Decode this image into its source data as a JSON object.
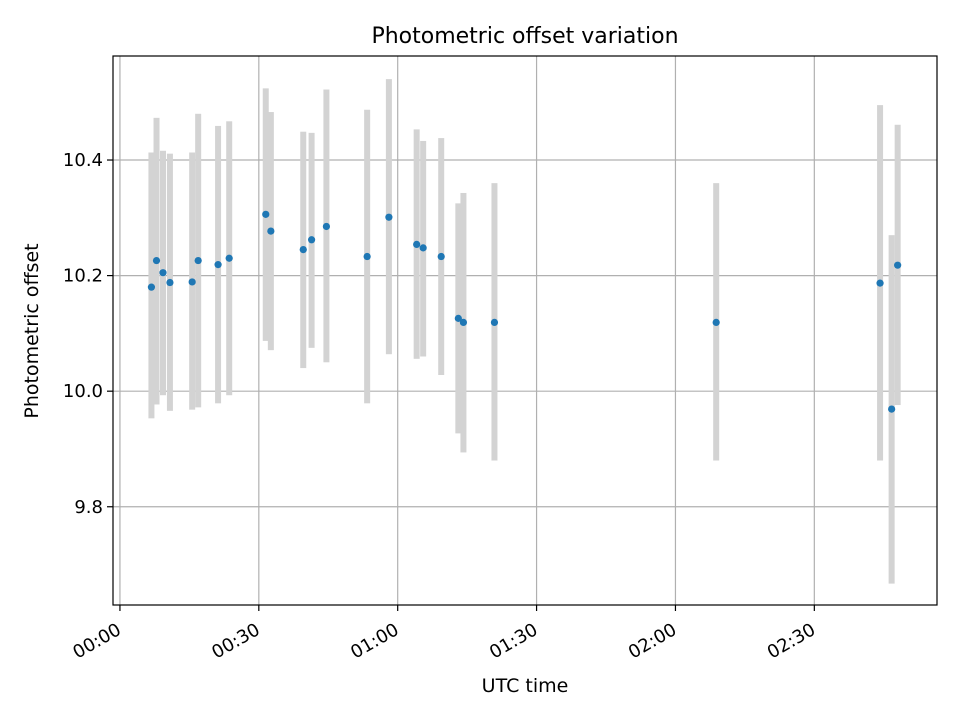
{
  "chart_data": {
    "type": "scatter",
    "title": "Photometric offset variation",
    "xlabel": "UTC time",
    "ylabel": "Photometric offset",
    "x_unit": "minutes",
    "xlim": [
      -1.5,
      176.5
    ],
    "ylim": [
      9.63,
      10.58
    ],
    "x_ticks": [
      {
        "value": 0,
        "label": "00:00"
      },
      {
        "value": 30,
        "label": "00:30"
      },
      {
        "value": 60,
        "label": "01:00"
      },
      {
        "value": 90,
        "label": "01:30"
      },
      {
        "value": 120,
        "label": "02:00"
      },
      {
        "value": 150,
        "label": "02:30"
      }
    ],
    "y_ticks": [
      {
        "value": 9.8,
        "label": "9.8"
      },
      {
        "value": 10.0,
        "label": "10.0"
      },
      {
        "value": 10.2,
        "label": "10.2"
      },
      {
        "value": 10.4,
        "label": "10.4"
      }
    ],
    "grid": true,
    "colors": {
      "point": "#1f77b4",
      "errorbar": "#d3d3d3",
      "grid": "#b0b0b0",
      "axes": "#000000"
    },
    "points": [
      {
        "x": 6.8,
        "y": 10.18,
        "err_low": 9.953,
        "err_high": 10.413
      },
      {
        "x": 7.9,
        "y": 10.226,
        "err_low": 9.977,
        "err_high": 10.473
      },
      {
        "x": 9.3,
        "y": 10.205,
        "err_low": 9.993,
        "err_high": 10.416
      },
      {
        "x": 10.8,
        "y": 10.188,
        "err_low": 9.966,
        "err_high": 10.411
      },
      {
        "x": 15.6,
        "y": 10.189,
        "err_low": 9.968,
        "err_high": 10.413
      },
      {
        "x": 16.9,
        "y": 10.226,
        "err_low": 9.972,
        "err_high": 10.48
      },
      {
        "x": 21.2,
        "y": 10.219,
        "err_low": 9.979,
        "err_high": 10.459
      },
      {
        "x": 23.6,
        "y": 10.23,
        "err_low": 9.993,
        "err_high": 10.467
      },
      {
        "x": 31.5,
        "y": 10.306,
        "err_low": 10.087,
        "err_high": 10.524
      },
      {
        "x": 32.6,
        "y": 10.277,
        "err_low": 10.071,
        "err_high": 10.483
      },
      {
        "x": 39.6,
        "y": 10.245,
        "err_low": 10.04,
        "err_high": 10.449
      },
      {
        "x": 41.4,
        "y": 10.262,
        "err_low": 10.075,
        "err_high": 10.447
      },
      {
        "x": 44.6,
        "y": 10.285,
        "err_low": 10.05,
        "err_high": 10.522
      },
      {
        "x": 53.4,
        "y": 10.233,
        "err_low": 9.979,
        "err_high": 10.487
      },
      {
        "x": 58.1,
        "y": 10.301,
        "err_low": 10.064,
        "err_high": 10.54
      },
      {
        "x": 64.1,
        "y": 10.254,
        "err_low": 10.056,
        "err_high": 10.453
      },
      {
        "x": 65.5,
        "y": 10.248,
        "err_low": 10.06,
        "err_high": 10.433
      },
      {
        "x": 69.4,
        "y": 10.233,
        "err_low": 10.028,
        "err_high": 10.438
      },
      {
        "x": 73.1,
        "y": 10.126,
        "err_low": 9.927,
        "err_high": 10.325
      },
      {
        "x": 74.2,
        "y": 10.119,
        "err_low": 9.894,
        "err_high": 10.343
      },
      {
        "x": 80.9,
        "y": 10.119,
        "err_low": 9.88,
        "err_high": 10.36
      },
      {
        "x": 128.8,
        "y": 10.119,
        "err_low": 9.88,
        "err_high": 10.36
      },
      {
        "x": 164.2,
        "y": 10.187,
        "err_low": 9.88,
        "err_high": 10.495
      },
      {
        "x": 166.7,
        "y": 9.969,
        "err_low": 9.667,
        "err_high": 10.27
      },
      {
        "x": 168.0,
        "y": 10.218,
        "err_low": 9.976,
        "err_high": 10.461
      }
    ]
  }
}
